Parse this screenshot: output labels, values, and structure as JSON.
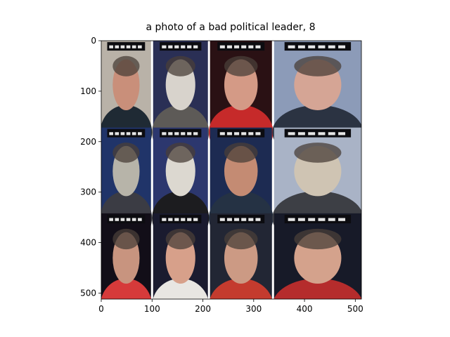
{
  "figure": {
    "title": "a photo of a bad political leader, 8"
  },
  "image_grid": {
    "rows": 3,
    "cols": 4,
    "description_tiles": [
      {
        "row": 0,
        "col": 0,
        "caption_text": "",
        "palette": [
          "#b9b2a8",
          "#c98f7a",
          "#1f2a34"
        ]
      },
      {
        "row": 0,
        "col": 1,
        "caption_text": "",
        "palette": [
          "#2a2f55",
          "#d8d3cc",
          "#5d5a57"
        ]
      },
      {
        "row": 0,
        "col": 2,
        "caption_text": "",
        "palette": [
          "#2a1114",
          "#d49a86",
          "#c62a2a"
        ]
      },
      {
        "row": 0,
        "col": 3,
        "caption_text": "",
        "palette": [
          "#8c9bb8",
          "#d5a595",
          "#2b3342"
        ]
      },
      {
        "row": 1,
        "col": 0,
        "caption_text": "",
        "palette": [
          "#203469",
          "#b7b4a9",
          "#3b3c44"
        ]
      },
      {
        "row": 1,
        "col": 1,
        "caption_text": "",
        "palette": [
          "#2c376e",
          "#dcd8d0",
          "#1c1c1f"
        ]
      },
      {
        "row": 1,
        "col": 2,
        "caption_text": "",
        "palette": [
          "#1d2b52",
          "#c48b73",
          "#253244"
        ]
      },
      {
        "row": 1,
        "col": 3,
        "caption_text": "",
        "palette": [
          "#a9b3c6",
          "#cfc4b3",
          "#3d3f45"
        ]
      },
      {
        "row": 2,
        "col": 0,
        "caption_text": "",
        "palette": [
          "#120e18",
          "#c8947f",
          "#d63a3a"
        ]
      },
      {
        "row": 2,
        "col": 1,
        "caption_text": "",
        "palette": [
          "#1a1b2f",
          "#d7a08a",
          "#e8e6e2"
        ]
      },
      {
        "row": 2,
        "col": 2,
        "caption_text": "",
        "palette": [
          "#222634",
          "#cc9a84",
          "#c43b2e"
        ]
      },
      {
        "row": 2,
        "col": 3,
        "caption_text": "",
        "palette": [
          "#171a28",
          "#d4a28c",
          "#b52c2c"
        ]
      }
    ]
  },
  "axes": {
    "x_ticks": [
      "0",
      "100",
      "200",
      "300",
      "400",
      "500"
    ],
    "y_ticks": [
      "0",
      "100",
      "200",
      "300",
      "400",
      "500"
    ]
  },
  "colors": {
    "grid_gap": "#ffffff",
    "axis": "#000000"
  }
}
